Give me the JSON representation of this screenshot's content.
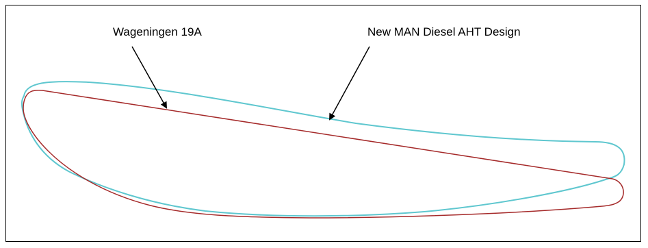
{
  "labels": {
    "wageningen": "Wageningen 19A",
    "man_diesel": "New MAN Diesel AHT Design"
  },
  "colors": {
    "wageningen_profile": "#a52a2a",
    "man_profile": "#5fc7cf",
    "arrow": "#000000",
    "frame": "#000000"
  }
}
